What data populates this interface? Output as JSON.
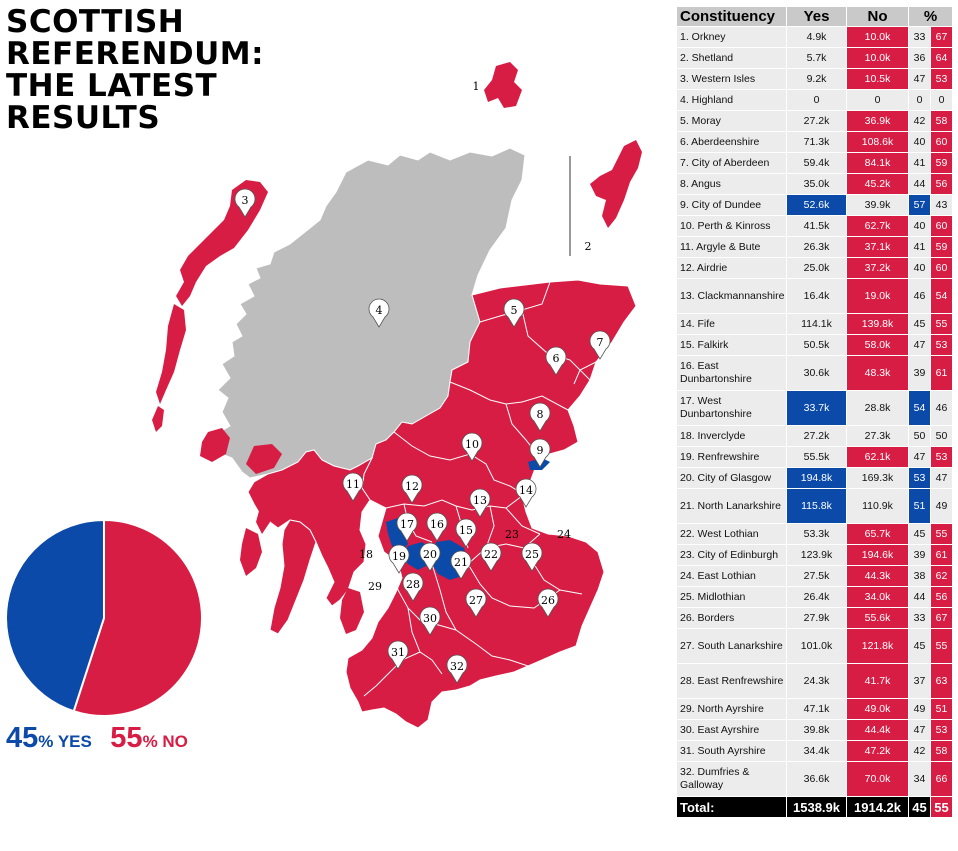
{
  "title_lines": [
    "SCOTTISH",
    "REFERENDUM:",
    "THE LATEST",
    "RESULTS"
  ],
  "colors": {
    "yes": "#0b4aa8",
    "no": "#d81d44",
    "undeclared": "#bdbdbd",
    "header": "#c9c9c9"
  },
  "summary": {
    "yes_value": "45",
    "yes_unit": "% ",
    "yes_word": "YES",
    "no_value": "55",
    "no_unit": "% ",
    "no_word": "NO"
  },
  "table": {
    "headers": [
      "Constituency",
      "Yes",
      "No",
      "%"
    ],
    "rows": [
      {
        "name": "1. Orkney",
        "yes": "4.9k",
        "no": "10.0k",
        "yp": "33",
        "np": "67"
      },
      {
        "name": "2. Shetland",
        "yes": "5.7k",
        "no": "10.0k",
        "yp": "36",
        "np": "64"
      },
      {
        "name": "3. Western Isles",
        "yes": "9.2k",
        "no": "10.5k",
        "yp": "47",
        "np": "53"
      },
      {
        "name": "4. Highland",
        "yes": "0",
        "no": "0",
        "yp": "0",
        "np": "0"
      },
      {
        "name": "5. Moray",
        "yes": "27.2k",
        "no": "36.9k",
        "yp": "42",
        "np": "58"
      },
      {
        "name": "6. Aberdeenshire",
        "yes": "71.3k",
        "no": "108.6k",
        "yp": "40",
        "np": "60"
      },
      {
        "name": "7. City of Aberdeen",
        "yes": "59.4k",
        "no": "84.1k",
        "yp": "41",
        "np": "59"
      },
      {
        "name": "8. Angus",
        "yes": "35.0k",
        "no": "45.2k",
        "yp": "44",
        "np": "56"
      },
      {
        "name": "9. City of Dundee",
        "yes": "52.6k",
        "no": "39.9k",
        "yp": "57",
        "np": "43"
      },
      {
        "name": "10. Perth & Kinross",
        "yes": "41.5k",
        "no": "62.7k",
        "yp": "40",
        "np": "60"
      },
      {
        "name": "11. Argyle & Bute",
        "yes": "26.3k",
        "no": "37.1k",
        "yp": "41",
        "np": "59"
      },
      {
        "name": "12. Airdrie",
        "yes": "25.0k",
        "no": "37.2k",
        "yp": "40",
        "np": "60"
      },
      {
        "name": "13. Clackmannanshire",
        "yes": "16.4k",
        "no": "19.0k",
        "yp": "46",
        "np": "54"
      },
      {
        "name": "14. Fife",
        "yes": "114.1k",
        "no": "139.8k",
        "yp": "45",
        "np": "55"
      },
      {
        "name": "15. Falkirk",
        "yes": "50.5k",
        "no": "58.0k",
        "yp": "47",
        "np": "53"
      },
      {
        "name": "16. East Dunbartonshire",
        "yes": "30.6k",
        "no": "48.3k",
        "yp": "39",
        "np": "61"
      },
      {
        "name": "17. West Dunbartonshire",
        "yes": "33.7k",
        "no": "28.8k",
        "yp": "54",
        "np": "46"
      },
      {
        "name": "18. Inverclyde",
        "yes": "27.2k",
        "no": "27.3k",
        "yp": "50",
        "np": "50"
      },
      {
        "name": "19. Renfrewshire",
        "yes": "55.5k",
        "no": "62.1k",
        "yp": "47",
        "np": "53"
      },
      {
        "name": "20. City of Glasgow",
        "yes": "194.8k",
        "no": "169.3k",
        "yp": "53",
        "np": "47"
      },
      {
        "name": "21. North Lanarkshire",
        "yes": "115.8k",
        "no": "110.9k",
        "yp": "51",
        "np": "49"
      },
      {
        "name": "22. West Lothian",
        "yes": "53.3k",
        "no": "65.7k",
        "yp": "45",
        "np": "55"
      },
      {
        "name": "23. City of Edinburgh",
        "yes": "123.9k",
        "no": "194.6k",
        "yp": "39",
        "np": "61"
      },
      {
        "name": "24. East Lothian",
        "yes": "27.5k",
        "no": "44.3k",
        "yp": "38",
        "np": "62"
      },
      {
        "name": "25. Midlothian",
        "yes": "26.4k",
        "no": "34.0k",
        "yp": "44",
        "np": "56"
      },
      {
        "name": "26. Borders",
        "yes": "27.9k",
        "no": "55.6k",
        "yp": "33",
        "np": "67"
      },
      {
        "name": "27. South Lanarkshire",
        "yes": "101.0k",
        "no": "121.8k",
        "yp": "45",
        "np": "55"
      },
      {
        "name": "28. East Renfrewshire",
        "yes": "24.3k",
        "no": "41.7k",
        "yp": "37",
        "np": "63"
      },
      {
        "name": "29. North Ayrshire",
        "yes": "47.1k",
        "no": "49.0k",
        "yp": "49",
        "np": "51"
      },
      {
        "name": "30. East Ayrshire",
        "yes": "39.8k",
        "no": "44.4k",
        "yp": "47",
        "np": "53"
      },
      {
        "name": "31. South Ayrshire",
        "yes": "34.4k",
        "no": "47.2k",
        "yp": "42",
        "np": "58"
      },
      {
        "name": "32. Dumfries & Galloway",
        "yes": "36.6k",
        "no": "70.0k",
        "yp": "34",
        "np": "66"
      }
    ],
    "total": {
      "label": "Total:",
      "yes": "1538.9k",
      "no": "1914.2k",
      "yp": "45",
      "np": "55"
    }
  },
  "chart_data": {
    "type": "pie",
    "categories": [
      "YES",
      "NO"
    ],
    "values": [
      45,
      55
    ]
  },
  "map": {
    "markers": [
      "1",
      "2",
      "3",
      "4",
      "5",
      "6",
      "7",
      "8",
      "9",
      "10",
      "11",
      "12",
      "13",
      "14",
      "15",
      "16",
      "17",
      "18",
      "19",
      "20",
      "21",
      "22",
      "23",
      "24",
      "25",
      "26",
      "27",
      "28",
      "29",
      "30",
      "31",
      "32"
    ]
  }
}
